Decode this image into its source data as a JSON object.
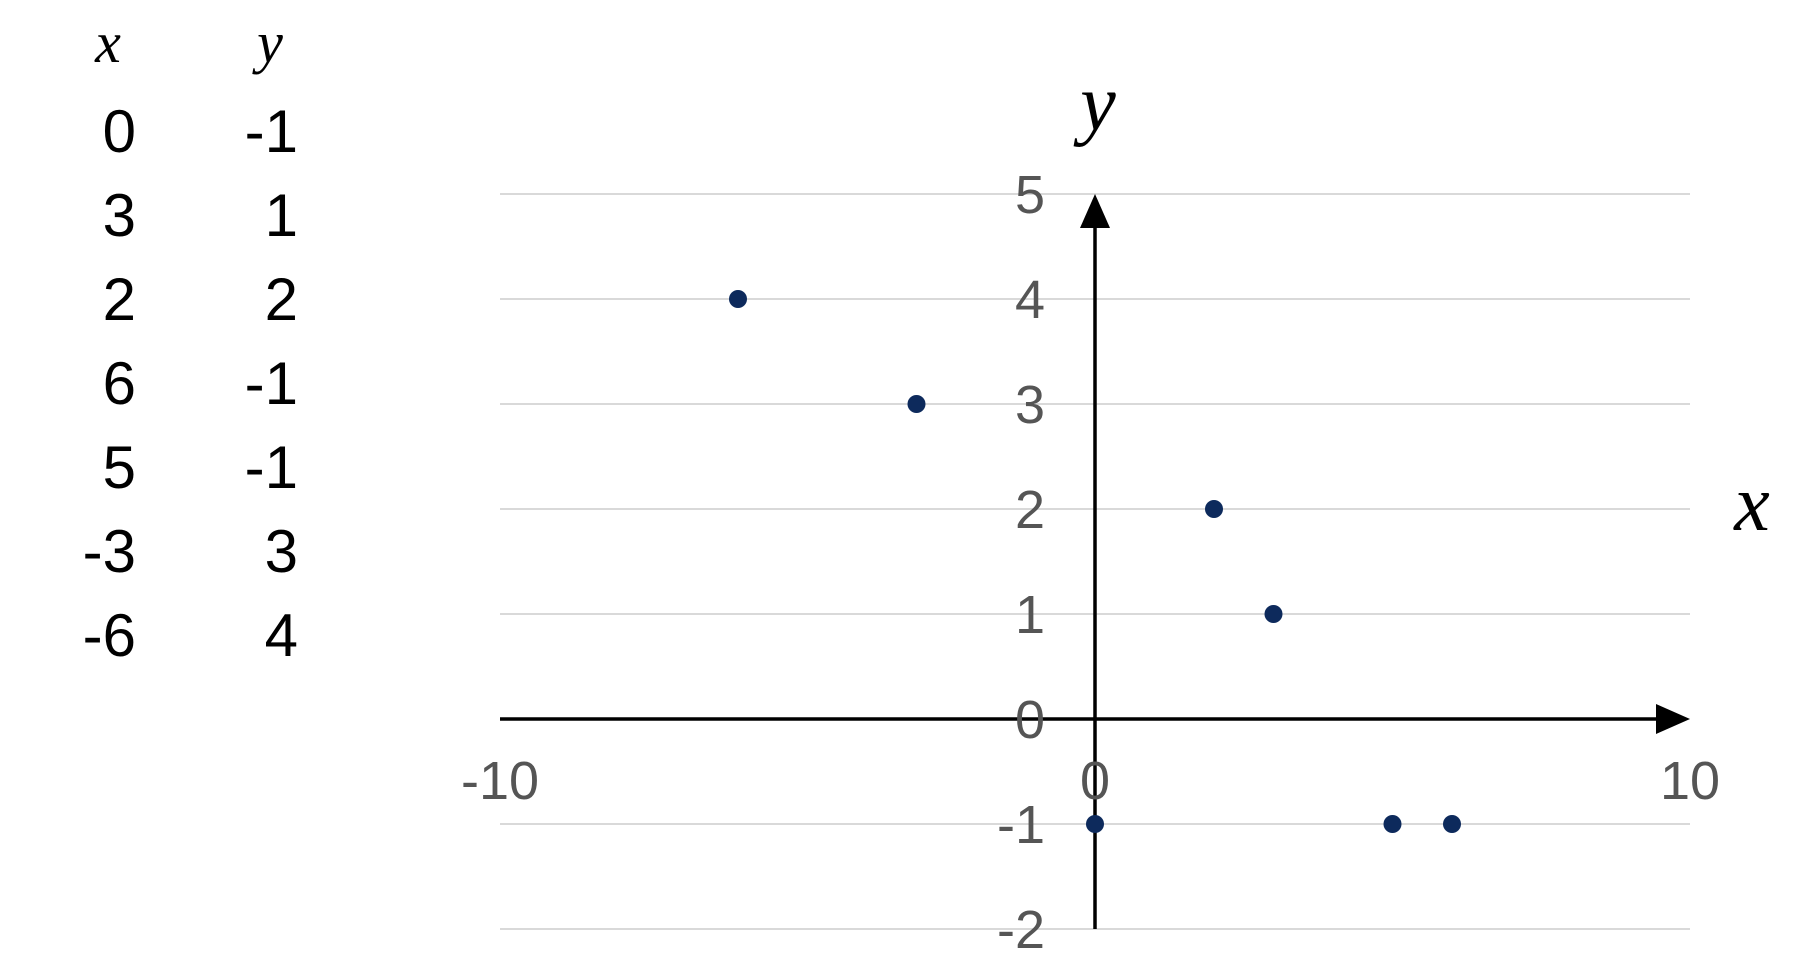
{
  "table": {
    "headers": {
      "x": "x",
      "y": "y"
    },
    "rows": [
      {
        "x": "0",
        "y": "-1"
      },
      {
        "x": "3",
        "y": "1"
      },
      {
        "x": "2",
        "y": "2"
      },
      {
        "x": "6",
        "y": "-1"
      },
      {
        "x": "5",
        "y": "-1"
      },
      {
        "x": "-3",
        "y": "3"
      },
      {
        "x": "-6",
        "y": "4"
      }
    ]
  },
  "chart_data": {
    "type": "scatter",
    "xlabel": "x",
    "ylabel": "y",
    "xlim": [
      -10,
      10
    ],
    "ylim": [
      -2,
      5
    ],
    "x_ticks": [
      "-10",
      "0",
      "10"
    ],
    "y_ticks": [
      "5",
      "4",
      "3",
      "2",
      "1",
      "0",
      "-1",
      "-2"
    ],
    "grid": "horizontal",
    "legend": "none",
    "marker_color": "#0d2a5c",
    "series": [
      {
        "points": [
          {
            "x": 0,
            "y": -1
          },
          {
            "x": 3,
            "y": 1
          },
          {
            "x": 2,
            "y": 2
          },
          {
            "x": 6,
            "y": -1
          },
          {
            "x": 5,
            "y": -1
          },
          {
            "x": -3,
            "y": 3
          },
          {
            "x": -6,
            "y": 4
          }
        ]
      }
    ]
  }
}
